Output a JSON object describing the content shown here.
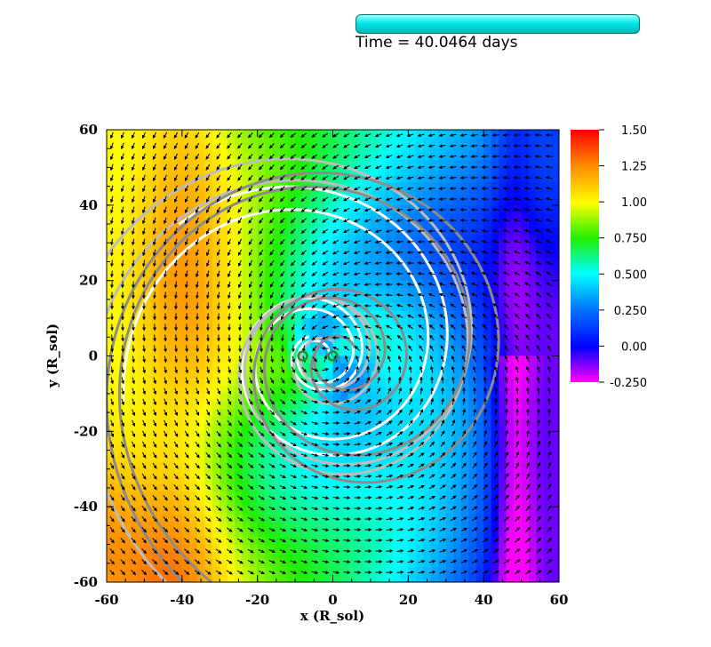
{
  "time_display": {
    "text": "Time = 40.0464 days"
  },
  "chart_data": {
    "type": "heatmap",
    "title": "",
    "xlabel": "x (R_sol)",
    "ylabel": "y (R_sol)",
    "xlim": [
      -60,
      60
    ],
    "ylim": [
      -60,
      60
    ],
    "x_ticks": [
      "-60",
      "-40",
      "-20",
      "0",
      "20",
      "40",
      "60"
    ],
    "y_ticks": [
      "-60",
      "-40",
      "-20",
      "0",
      "20",
      "40",
      "60"
    ],
    "colorbar": {
      "range": [
        -0.25,
        1.5
      ],
      "tick_labels": [
        "1.50",
        "1.25",
        "1.00",
        "0.750",
        "0.500",
        "0.250",
        "0.00",
        "-0.250"
      ],
      "tick_values": [
        1.5,
        1.25,
        1.0,
        0.75,
        0.5,
        0.25,
        0.0,
        -0.25
      ],
      "colormap": "rainbow (magenta → blue → cyan → green → yellow → red)"
    },
    "overlays": [
      "velocity vector arrows (black)",
      "white density contours",
      "light-gray contours",
      "dark-gray contours"
    ],
    "point_markers": [
      {
        "x": -8,
        "y": 0,
        "color": "#2b8a2b"
      },
      {
        "x": 0,
        "y": 0,
        "color": "#2b8a2b"
      }
    ]
  }
}
